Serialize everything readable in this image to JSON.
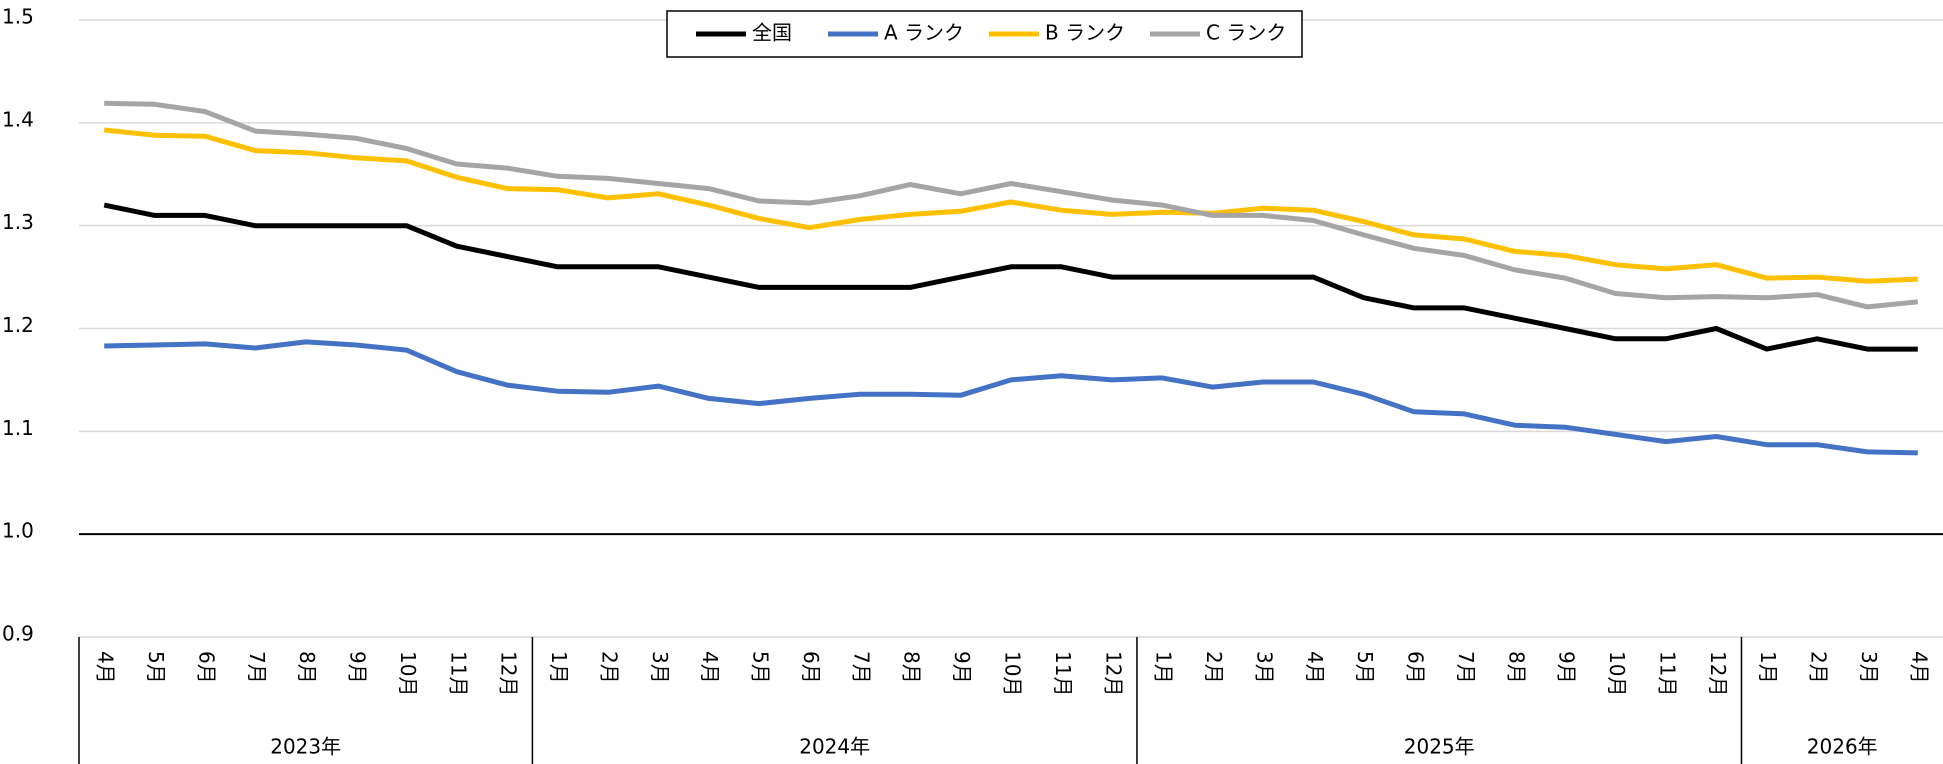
{
  "chart_data": {
    "type": "line",
    "categories": [
      "4月",
      "5月",
      "6月",
      "7月",
      "8月",
      "9月",
      "10月",
      "11月",
      "12月",
      "1月",
      "2月",
      "3月",
      "4月",
      "5月",
      "6月",
      "7月",
      "8月",
      "9月",
      "10月",
      "11月",
      "12月",
      "1月",
      "2月",
      "3月",
      "4月",
      "5月",
      "6月",
      "7月",
      "8月",
      "9月",
      "10月",
      "11月",
      "12月",
      "1月",
      "2月",
      "3月",
      "4月"
    ],
    "groups": [
      {
        "label": "2023年",
        "start": 0,
        "end": 8
      },
      {
        "label": "2024年",
        "start": 9,
        "end": 20
      },
      {
        "label": "2025年",
        "start": 21,
        "end": 32
      },
      {
        "label": "2026年",
        "start": 33,
        "end": 36
      }
    ],
    "series": [
      {
        "name": "全国",
        "color": "#000000",
        "values": [
          1.32,
          1.31,
          1.31,
          1.3,
          1.3,
          1.3,
          1.3,
          1.28,
          1.27,
          1.26,
          1.26,
          1.26,
          1.25,
          1.24,
          1.24,
          1.24,
          1.24,
          1.25,
          1.26,
          1.26,
          1.25,
          1.25,
          1.25,
          1.25,
          1.25,
          1.23,
          1.22,
          1.22,
          1.21,
          1.2,
          1.19,
          1.19,
          1.2,
          1.18,
          1.19,
          1.18,
          1.18
        ]
      },
      {
        "name": "A ランク",
        "color": "#4472c4",
        "values": [
          1.183,
          1.184,
          1.185,
          1.181,
          1.187,
          1.184,
          1.179,
          1.158,
          1.145,
          1.139,
          1.138,
          1.144,
          1.132,
          1.127,
          1.132,
          1.136,
          1.136,
          1.135,
          1.15,
          1.154,
          1.15,
          1.152,
          1.143,
          1.148,
          1.148,
          1.136,
          1.119,
          1.117,
          1.106,
          1.104,
          1.097,
          1.09,
          1.095,
          1.087,
          1.087,
          1.08,
          1.079
        ]
      },
      {
        "name": "B ランク",
        "color": "#ffc000",
        "values": [
          1.393,
          1.388,
          1.387,
          1.373,
          1.371,
          1.366,
          1.363,
          1.347,
          1.336,
          1.335,
          1.327,
          1.331,
          1.32,
          1.307,
          1.298,
          1.306,
          1.311,
          1.314,
          1.323,
          1.315,
          1.311,
          1.313,
          1.312,
          1.317,
          1.315,
          1.304,
          1.291,
          1.287,
          1.275,
          1.271,
          1.262,
          1.258,
          1.262,
          1.249,
          1.25,
          1.246,
          1.248
        ]
      },
      {
        "name": "C ランク",
        "color": "#a5a5a5",
        "values": [
          1.419,
          1.418,
          1.411,
          1.392,
          1.389,
          1.385,
          1.375,
          1.36,
          1.356,
          1.348,
          1.346,
          1.341,
          1.336,
          1.324,
          1.322,
          1.329,
          1.34,
          1.331,
          1.341,
          1.333,
          1.325,
          1.32,
          1.31,
          1.31,
          1.305,
          1.291,
          1.278,
          1.271,
          1.257,
          1.249,
          1.234,
          1.23,
          1.231,
          1.23,
          1.233,
          1.221,
          1.226
        ]
      }
    ],
    "ylim": [
      0.9,
      1.5
    ],
    "yticks": [
      0.9,
      {
        "value": 1,
        "label": "1.0"
      },
      1.1,
      1.2,
      1.3,
      1.4,
      1.5
    ],
    "axis_crosses": 1,
    "grid": true,
    "legend": "top"
  }
}
